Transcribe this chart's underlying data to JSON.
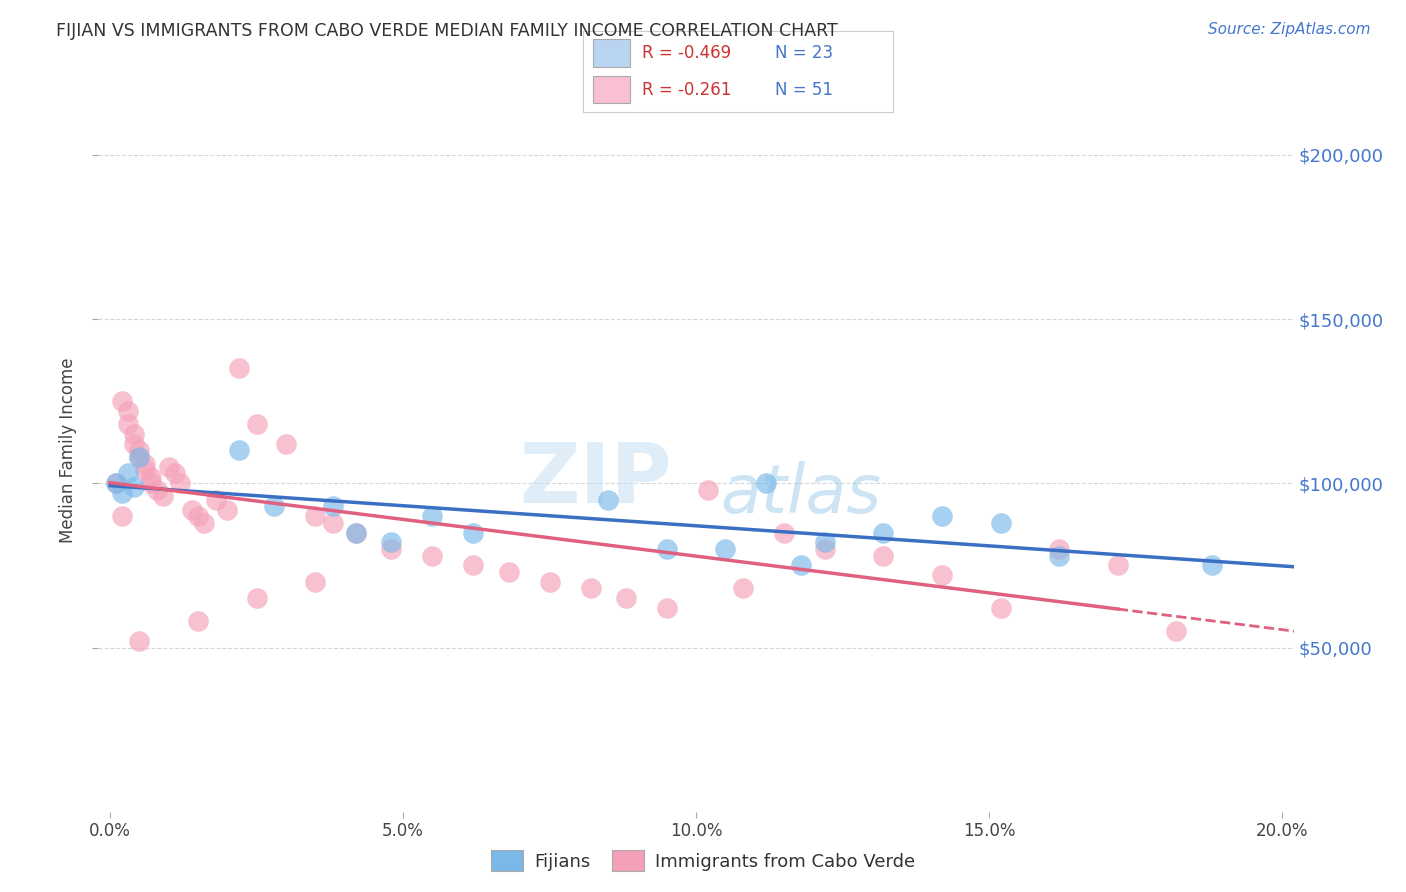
{
  "title": "FIJIAN VS IMMIGRANTS FROM CABO VERDE MEDIAN FAMILY INCOME CORRELATION CHART",
  "source": "Source: ZipAtlas.com",
  "ylabel": "Median Family Income",
  "xlabel_ticks": [
    "0.0%",
    "5.0%",
    "10.0%",
    "15.0%",
    "20.0%"
  ],
  "xlabel_vals": [
    0.0,
    0.05,
    0.1,
    0.15,
    0.2
  ],
  "ylim": [
    0,
    220000
  ],
  "xlim": [
    -0.002,
    0.202
  ],
  "ytick_vals": [
    50000,
    100000,
    150000,
    200000
  ],
  "ytick_labels": [
    "$50,000",
    "$100,000",
    "$150,000",
    "$200,000"
  ],
  "fijian_color": "#7ab8e8",
  "cabo_verde_color": "#f4a0b8",
  "fijian_line_color": "#3a6fc4",
  "cabo_verde_line_color": "#e06080",
  "grid_color": "#d8d8d8",
  "background_color": "#ffffff",
  "fijian_x": [
    0.001,
    0.002,
    0.003,
    0.004,
    0.005,
    0.022,
    0.028,
    0.038,
    0.042,
    0.048,
    0.055,
    0.062,
    0.085,
    0.095,
    0.105,
    0.112,
    0.118,
    0.122,
    0.132,
    0.142,
    0.152,
    0.162,
    0.188
  ],
  "fijian_y": [
    100000,
    97000,
    103000,
    99000,
    108000,
    110000,
    93000,
    93000,
    85000,
    82000,
    90000,
    85000,
    95000,
    80000,
    80000,
    100000,
    75000,
    82000,
    85000,
    90000,
    88000,
    78000,
    75000
  ],
  "cabo_verde_x": [
    0.001,
    0.002,
    0.002,
    0.003,
    0.003,
    0.004,
    0.004,
    0.005,
    0.005,
    0.006,
    0.006,
    0.007,
    0.007,
    0.008,
    0.009,
    0.01,
    0.011,
    0.012,
    0.014,
    0.015,
    0.016,
    0.018,
    0.02,
    0.022,
    0.025,
    0.03,
    0.035,
    0.038,
    0.042,
    0.048,
    0.055,
    0.062,
    0.068,
    0.075,
    0.082,
    0.088,
    0.095,
    0.102,
    0.108,
    0.115,
    0.122,
    0.132,
    0.142,
    0.152,
    0.162,
    0.172,
    0.182,
    0.005,
    0.015,
    0.025,
    0.035
  ],
  "cabo_verde_y": [
    100000,
    90000,
    125000,
    122000,
    118000,
    115000,
    112000,
    110000,
    108000,
    106000,
    104000,
    102000,
    100000,
    98000,
    96000,
    105000,
    103000,
    100000,
    92000,
    90000,
    88000,
    95000,
    92000,
    135000,
    118000,
    112000,
    90000,
    88000,
    85000,
    80000,
    78000,
    75000,
    73000,
    70000,
    68000,
    65000,
    62000,
    98000,
    68000,
    85000,
    80000,
    78000,
    72000,
    62000,
    80000,
    75000,
    55000,
    52000,
    58000,
    65000,
    70000
  ],
  "legend_r_fijian": "R = -0.469",
  "legend_n_fijian": "N = 23",
  "legend_r_cabo": "R = -0.261",
  "legend_n_cabo": "N = 51",
  "legend_fijian_color": "#b8d4f0",
  "legend_cabo_color": "#f8c0d0",
  "watermark_zip": "ZIP",
  "watermark_atlas": "atlas"
}
